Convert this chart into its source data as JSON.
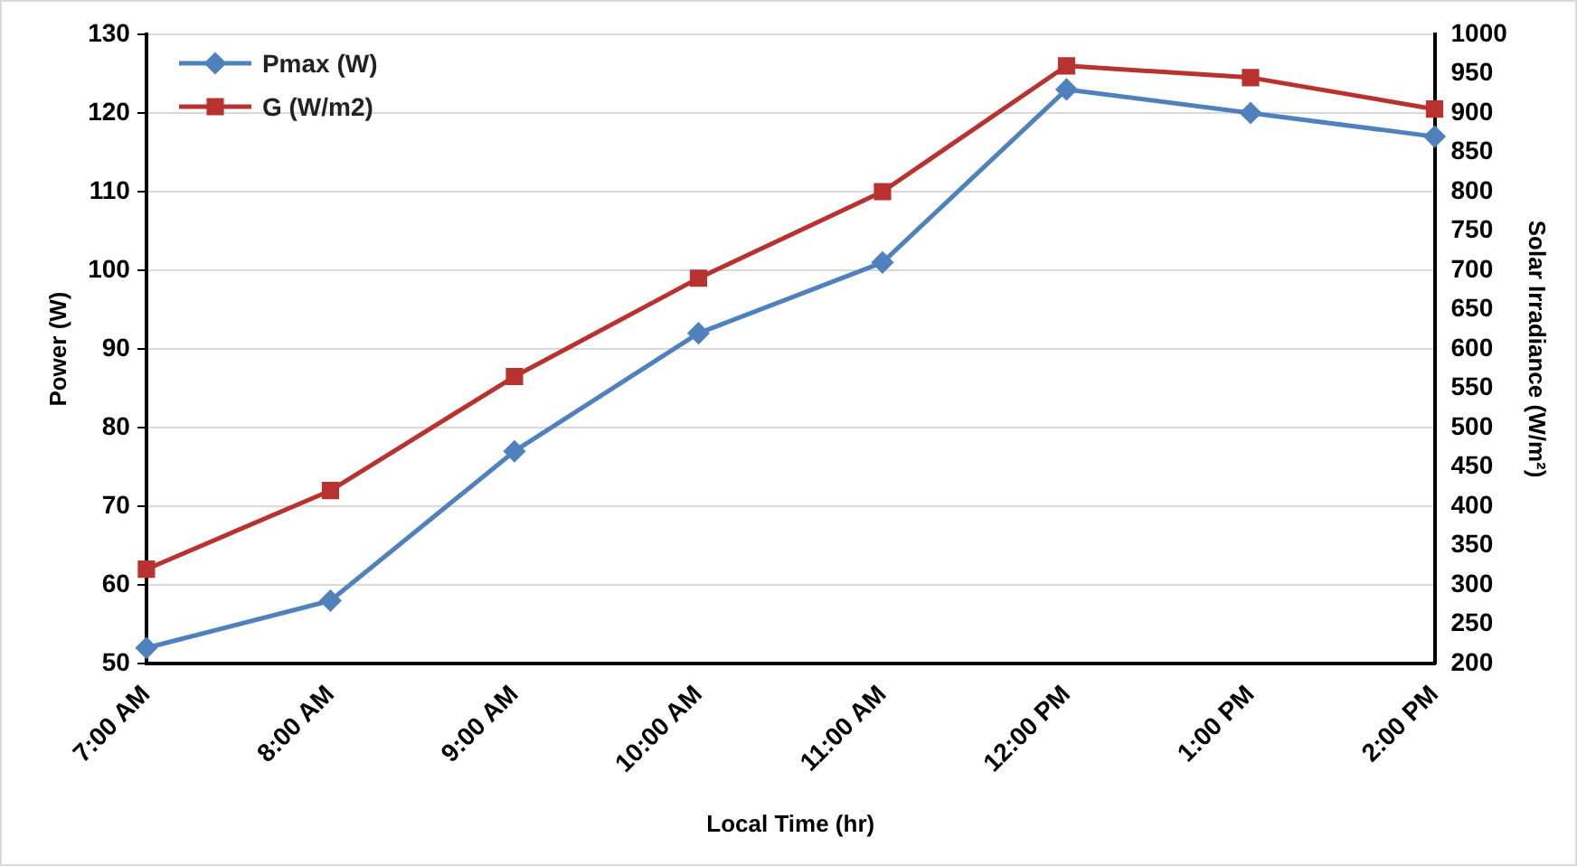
{
  "chart_data": {
    "type": "line",
    "xlabel": "Local Time (hr)",
    "ylabel": "Power (W)",
    "y2label": "Solar Irradiance (W/m²)",
    "categories": [
      "7:00 AM",
      "8:00 AM",
      "9:00 AM",
      "10:00 AM",
      "11:00 AM",
      "12:00 PM",
      "1:00 PM",
      "2:00 PM"
    ],
    "series": [
      {
        "name": "Pmax (W)",
        "color": "#4f81bd",
        "marker": "diamond",
        "values": [
          52,
          58,
          77,
          92,
          101,
          123,
          120,
          117
        ]
      },
      {
        "name": "G (W/m2)",
        "color": "#b8322f",
        "marker": "square",
        "axis": "y2",
        "values": [
          320,
          420,
          565,
          690,
          800,
          960,
          945,
          905
        ]
      }
    ],
    "ylim": [
      50,
      130
    ],
    "yticks": [
      50,
      60,
      70,
      80,
      90,
      100,
      110,
      120,
      130
    ],
    "y2lim": [
      200,
      1000
    ],
    "y2ticks": [
      200,
      250,
      300,
      350,
      400,
      450,
      500,
      550,
      600,
      650,
      700,
      750,
      800,
      850,
      900,
      950,
      1000
    ],
    "grid": "y",
    "legend": "top left",
    "line_style": "solid"
  }
}
